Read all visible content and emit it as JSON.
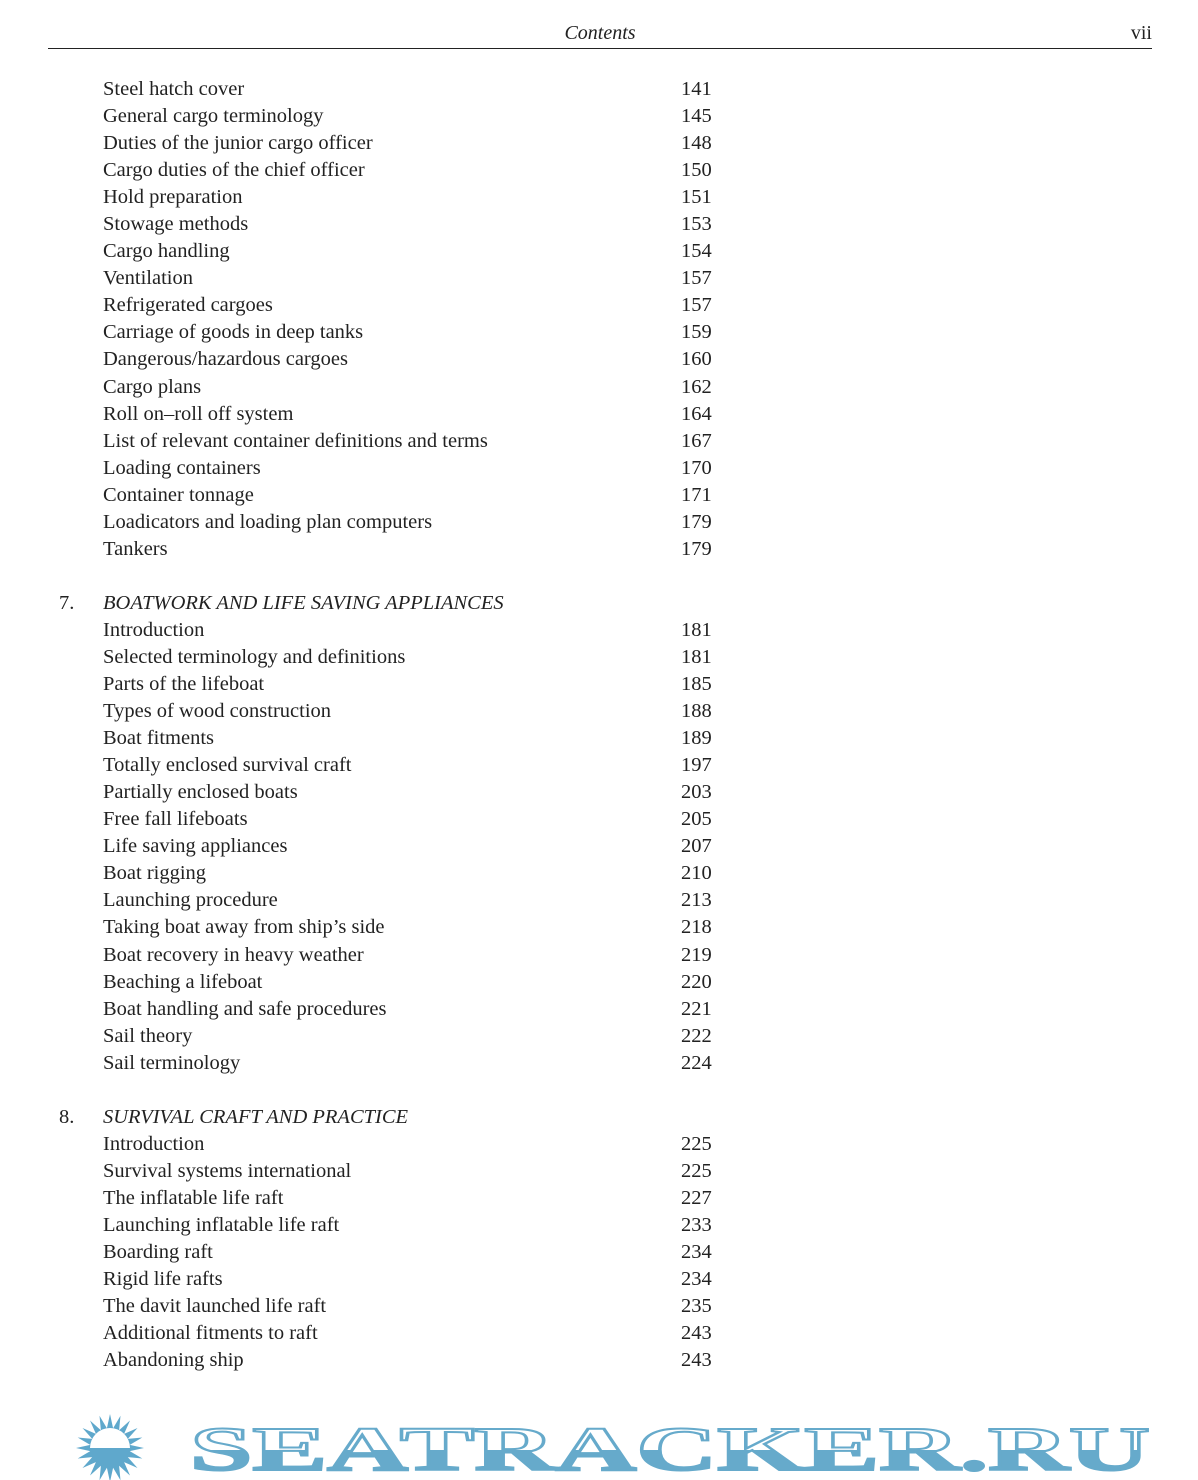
{
  "header": {
    "title": "Contents",
    "page": "vii"
  },
  "sections": [
    {
      "number": "",
      "title": "",
      "entries": [
        {
          "title": "Steel hatch cover",
          "page": "141"
        },
        {
          "title": "General cargo terminology",
          "page": "145"
        },
        {
          "title": "Duties of the junior cargo officer",
          "page": "148"
        },
        {
          "title": "Cargo duties of the chief officer",
          "page": "150"
        },
        {
          "title": "Hold preparation",
          "page": "151"
        },
        {
          "title": "Stowage methods",
          "page": "153"
        },
        {
          "title": "Cargo handling",
          "page": "154"
        },
        {
          "title": "Ventilation",
          "page": "157"
        },
        {
          "title": "Refrigerated cargoes",
          "page": "157"
        },
        {
          "title": "Carriage of goods in deep tanks",
          "page": "159"
        },
        {
          "title": "Dangerous/hazardous cargoes",
          "page": "160"
        },
        {
          "title": "Cargo plans",
          "page": "162"
        },
        {
          "title": "Roll on–roll off system",
          "page": "164"
        },
        {
          "title": "List of relevant container definitions and terms",
          "page": "167"
        },
        {
          "title": "Loading containers",
          "page": "170"
        },
        {
          "title": "Container tonnage",
          "page": "171"
        },
        {
          "title": "Loadicators and loading plan computers",
          "page": "179"
        },
        {
          "title": "Tankers",
          "page": "179"
        }
      ]
    },
    {
      "number": "7.",
      "title": "BOATWORK AND LIFE SAVING APPLIANCES",
      "entries": [
        {
          "title": "Introduction",
          "page": "181"
        },
        {
          "title": "Selected terminology and definitions",
          "page": "181"
        },
        {
          "title": "Parts of the lifeboat",
          "page": "185"
        },
        {
          "title": "Types of wood construction",
          "page": "188"
        },
        {
          "title": "Boat fitments",
          "page": "189"
        },
        {
          "title": "Totally enclosed survival craft",
          "page": "197"
        },
        {
          "title": "Partially enclosed boats",
          "page": "203"
        },
        {
          "title": "Free fall lifeboats",
          "page": "205"
        },
        {
          "title": "Life saving appliances",
          "page": "207"
        },
        {
          "title": "Boat rigging",
          "page": "210"
        },
        {
          "title": "Launching procedure",
          "page": "213"
        },
        {
          "title": "Taking boat away from ship’s side",
          "page": "218"
        },
        {
          "title": "Boat recovery in heavy weather",
          "page": "219"
        },
        {
          "title": "Beaching a lifeboat",
          "page": "220"
        },
        {
          "title": "Boat handling and safe procedures",
          "page": "221"
        },
        {
          "title": "Sail theory",
          "page": "222"
        },
        {
          "title": "Sail terminology",
          "page": "224"
        }
      ]
    },
    {
      "number": "8.",
      "title": "SURVIVAL CRAFT AND PRACTICE",
      "entries": [
        {
          "title": "Introduction",
          "page": "225"
        },
        {
          "title": "Survival systems international",
          "page": "225"
        },
        {
          "title": "The inflatable life raft",
          "page": "227"
        },
        {
          "title": "Launching inflatable life raft",
          "page": "233"
        },
        {
          "title": "Boarding raft",
          "page": "234"
        },
        {
          "title": "Rigid life rafts",
          "page": "234"
        },
        {
          "title": "The davit launched life raft",
          "page": "235"
        },
        {
          "title": "Additional fitments to raft",
          "page": "243"
        },
        {
          "title": "Abandoning ship",
          "page": "243"
        }
      ]
    }
  ],
  "watermark": {
    "text": "SEATRACKER.RU",
    "color": "#5fa8cc"
  }
}
